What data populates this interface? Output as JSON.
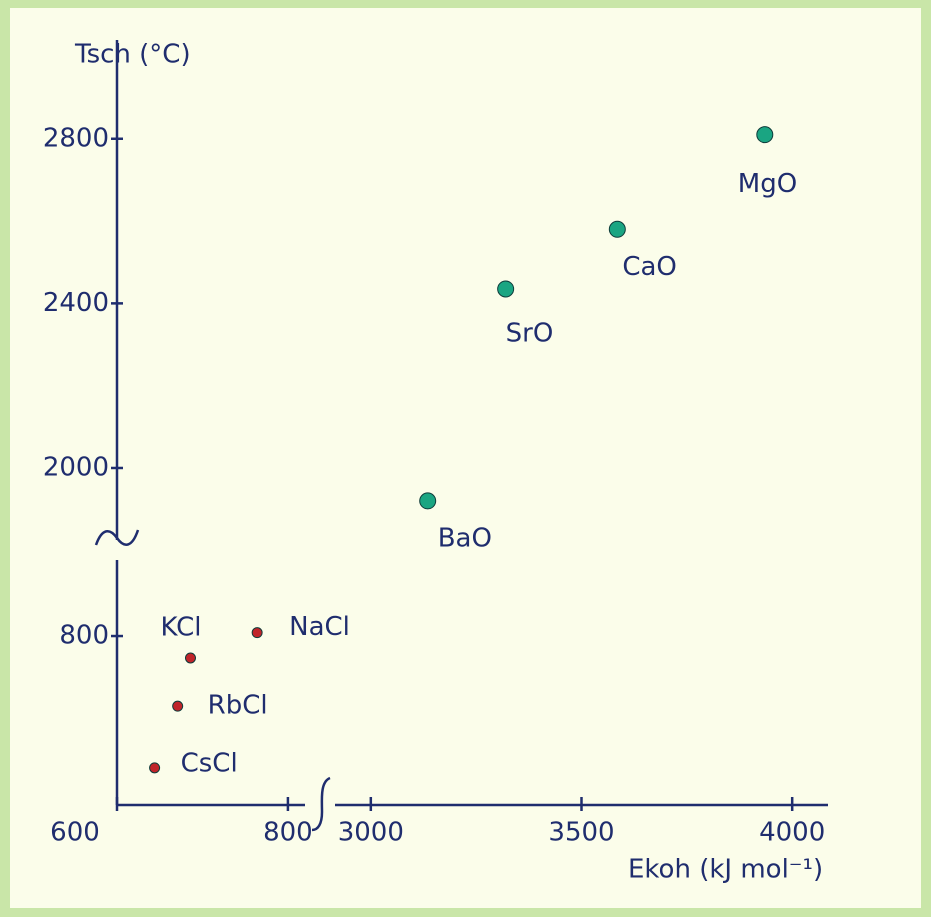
{
  "chart_data": [
    {
      "type": "scatter",
      "y_label": "Tsch (°C)",
      "x_label": "Ekoh (kJ mol⁻¹)",
      "labels": [
        "BaO",
        "SrO",
        "CaO",
        "MgO"
      ],
      "x": [
        3135,
        3320,
        3585,
        3935
      ],
      "values": [
        1920,
        2435,
        2580,
        2810
      ],
      "color": "#1aa582",
      "xlim": [
        2915,
        4085
      ],
      "ylim": [
        1825,
        3040
      ],
      "xticks": [
        3000,
        3500,
        4000
      ],
      "yticks": [
        2000,
        2400,
        2800
      ]
    },
    {
      "type": "scatter",
      "labels": [
        "KCl",
        "NaCl",
        "RbCl",
        "CsCl"
      ],
      "x": [
        686,
        764,
        671,
        644
      ],
      "values": [
        774,
        804,
        717,
        644
      ],
      "color": "#c0242a",
      "xlim": [
        600,
        820
      ],
      "ylim": [
        600,
        890
      ],
      "xticks": [
        600,
        800
      ],
      "yticks": [
        800
      ]
    }
  ]
}
